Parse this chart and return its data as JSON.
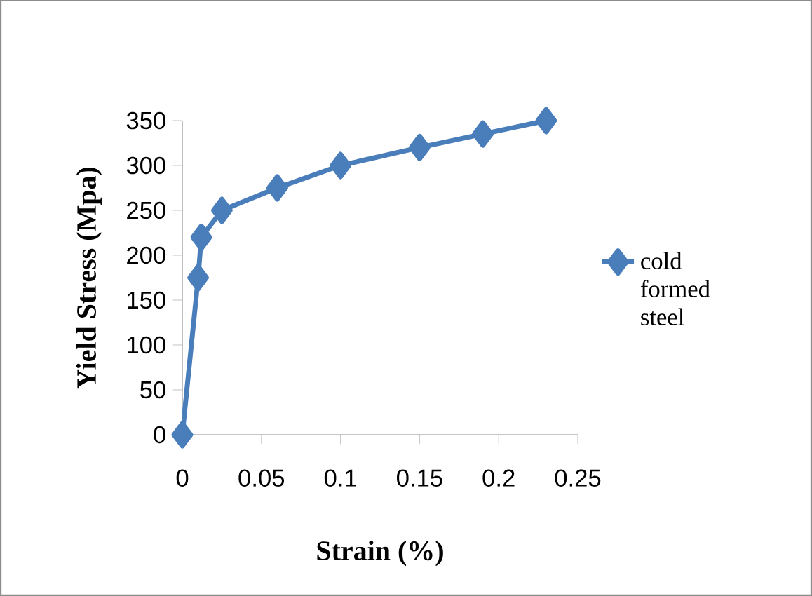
{
  "chart_data": {
    "type": "line",
    "xlabel": "Strain (%)",
    "ylabel": "Yield Stress (Mpa)",
    "x": [
      0,
      0.01,
      0.012,
      0.025,
      0.06,
      0.1,
      0.15,
      0.19,
      0.23
    ],
    "series": [
      {
        "name": "cold formed steel",
        "color": "#4a7ebb",
        "values": [
          0,
          175,
          220,
          250,
          275,
          300,
          320,
          335,
          350
        ]
      }
    ],
    "xlim": [
      0,
      0.25
    ],
    "ylim": [
      0,
      350
    ],
    "xticks": [
      0,
      0.05,
      0.1,
      0.15,
      0.2,
      0.25
    ],
    "yticks": [
      0,
      50,
      100,
      150,
      200,
      250,
      300,
      350
    ],
    "legend": "right",
    "marker": "diamond"
  }
}
